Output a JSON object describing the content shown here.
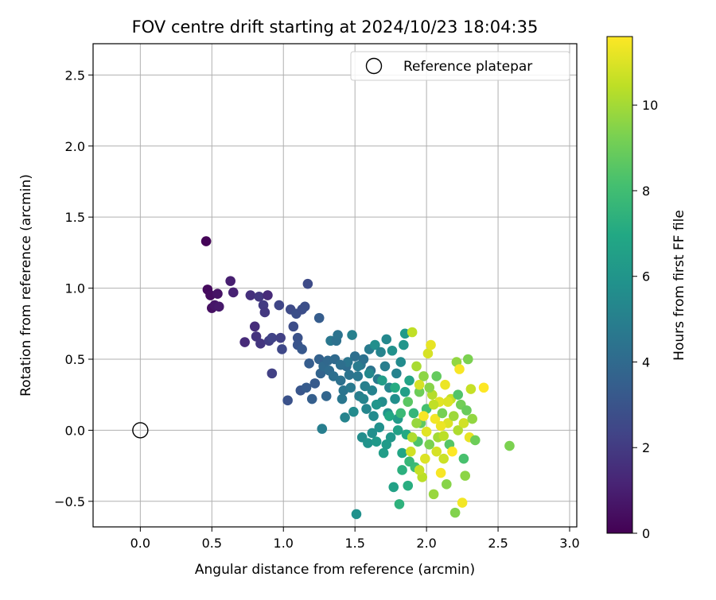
{
  "chart_data": {
    "type": "scatter",
    "title": "FOV centre drift starting at 2024/10/23 18:04:35",
    "xlabel": "Angular distance from reference (arcmin)",
    "ylabel": "Rotation from reference (arcmin)",
    "xlim": [
      -0.33,
      3.05
    ],
    "ylim": [
      -0.68,
      2.72
    ],
    "xticks": [
      0.0,
      0.5,
      1.0,
      1.5,
      2.0,
      2.5,
      3.0
    ],
    "xtick_labels": [
      "0.0",
      "0.5",
      "1.0",
      "1.5",
      "2.0",
      "2.5",
      "3.0"
    ],
    "yticks": [
      -0.5,
      0.0,
      0.5,
      1.0,
      1.5,
      2.0,
      2.5
    ],
    "ytick_labels": [
      "−0.5",
      "0.0",
      "0.5",
      "1.0",
      "1.5",
      "2.0",
      "2.5"
    ],
    "grid": true,
    "legend": {
      "position": "top-right",
      "entries": [
        {
          "label": "Reference platepar",
          "marker": "open-circle"
        }
      ]
    },
    "reference_point": {
      "x": 0.0,
      "y": 0.0
    },
    "colorbar": {
      "label": "Hours from first FF file",
      "colormap": "viridis",
      "range": [
        0,
        11.6
      ],
      "ticks": [
        0,
        2,
        4,
        6,
        8,
        10
      ],
      "tick_labels": [
        "0",
        "2",
        "4",
        "6",
        "8",
        "10"
      ]
    },
    "points": [
      {
        "x": 0.46,
        "y": 1.33,
        "t": 0.1
      },
      {
        "x": 0.47,
        "y": 0.99,
        "t": 0.3
      },
      {
        "x": 0.49,
        "y": 0.95,
        "t": 0.4
      },
      {
        "x": 0.5,
        "y": 0.86,
        "t": 0.5
      },
      {
        "x": 0.52,
        "y": 0.88,
        "t": 0.7
      },
      {
        "x": 0.54,
        "y": 0.96,
        "t": 0.6
      },
      {
        "x": 0.55,
        "y": 0.87,
        "t": 0.8
      },
      {
        "x": 0.63,
        "y": 1.05,
        "t": 1.0
      },
      {
        "x": 0.65,
        "y": 0.97,
        "t": 1.1
      },
      {
        "x": 0.73,
        "y": 0.62,
        "t": 1.4
      },
      {
        "x": 0.77,
        "y": 0.95,
        "t": 1.6
      },
      {
        "x": 0.8,
        "y": 0.73,
        "t": 1.5
      },
      {
        "x": 0.81,
        "y": 0.66,
        "t": 1.7
      },
      {
        "x": 0.83,
        "y": 0.94,
        "t": 1.9
      },
      {
        "x": 0.84,
        "y": 0.61,
        "t": 1.8
      },
      {
        "x": 0.86,
        "y": 0.88,
        "t": 2.0
      },
      {
        "x": 0.87,
        "y": 0.83,
        "t": 1.9
      },
      {
        "x": 0.89,
        "y": 0.95,
        "t": 1.4
      },
      {
        "x": 0.9,
        "y": 0.63,
        "t": 2.1
      },
      {
        "x": 0.92,
        "y": 0.4,
        "t": 2.2
      },
      {
        "x": 0.92,
        "y": 0.65,
        "t": 2.3
      },
      {
        "x": 0.97,
        "y": 0.88,
        "t": 2.4
      },
      {
        "x": 0.98,
        "y": 0.65,
        "t": 2.2
      },
      {
        "x": 0.99,
        "y": 0.57,
        "t": 2.5
      },
      {
        "x": 1.03,
        "y": 0.21,
        "t": 2.9
      },
      {
        "x": 1.05,
        "y": 0.85,
        "t": 2.6
      },
      {
        "x": 1.07,
        "y": 0.73,
        "t": 2.7
      },
      {
        "x": 1.09,
        "y": 0.82,
        "t": 2.8
      },
      {
        "x": 1.1,
        "y": 0.65,
        "t": 2.9
      },
      {
        "x": 1.1,
        "y": 0.6,
        "t": 3.0
      },
      {
        "x": 1.12,
        "y": 0.28,
        "t": 3.1
      },
      {
        "x": 1.13,
        "y": 0.85,
        "t": 2.7
      },
      {
        "x": 1.13,
        "y": 0.57,
        "t": 3.2
      },
      {
        "x": 1.15,
        "y": 0.87,
        "t": 2.8
      },
      {
        "x": 1.16,
        "y": 0.3,
        "t": 3.3
      },
      {
        "x": 1.17,
        "y": 1.03,
        "t": 2.6
      },
      {
        "x": 1.18,
        "y": 0.47,
        "t": 3.4
      },
      {
        "x": 1.2,
        "y": 0.22,
        "t": 3.5
      },
      {
        "x": 1.22,
        "y": 0.33,
        "t": 3.3
      },
      {
        "x": 1.25,
        "y": 0.79,
        "t": 3.4
      },
      {
        "x": 1.25,
        "y": 0.5,
        "t": 3.6
      },
      {
        "x": 1.26,
        "y": 0.4,
        "t": 3.7
      },
      {
        "x": 1.27,
        "y": 0.01,
        "t": 4.9
      },
      {
        "x": 1.28,
        "y": 0.45,
        "t": 4.0
      },
      {
        "x": 1.3,
        "y": 0.24,
        "t": 3.8
      },
      {
        "x": 1.31,
        "y": 0.49,
        "t": 3.9
      },
      {
        "x": 1.32,
        "y": 0.42,
        "t": 4.1
      },
      {
        "x": 1.33,
        "y": 0.63,
        "t": 4.6
      },
      {
        "x": 1.35,
        "y": 0.38,
        "t": 4.2
      },
      {
        "x": 1.36,
        "y": 0.5,
        "t": 4.0
      },
      {
        "x": 1.37,
        "y": 0.63,
        "t": 4.3
      },
      {
        "x": 1.38,
        "y": 0.67,
        "t": 4.4
      },
      {
        "x": 1.4,
        "y": 0.35,
        "t": 4.3
      },
      {
        "x": 1.41,
        "y": 0.22,
        "t": 4.6
      },
      {
        "x": 1.42,
        "y": 0.28,
        "t": 4.5
      },
      {
        "x": 1.43,
        "y": 0.09,
        "t": 5.2
      },
      {
        "x": 1.44,
        "y": 0.45,
        "t": 4.1
      },
      {
        "x": 1.46,
        "y": 0.39,
        "t": 4.4
      },
      {
        "x": 1.47,
        "y": 0.3,
        "t": 4.7
      },
      {
        "x": 1.48,
        "y": 0.67,
        "t": 5.0
      },
      {
        "x": 1.49,
        "y": 0.13,
        "t": 5.5
      },
      {
        "x": 1.5,
        "y": 0.52,
        "t": 4.2
      },
      {
        "x": 1.51,
        "y": -0.59,
        "t": 5.8
      },
      {
        "x": 1.52,
        "y": 0.38,
        "t": 4.6
      },
      {
        "x": 1.53,
        "y": 0.24,
        "t": 4.9
      },
      {
        "x": 1.54,
        "y": 0.46,
        "t": 4.5
      },
      {
        "x": 1.55,
        "y": -0.05,
        "t": 5.6
      },
      {
        "x": 1.56,
        "y": 0.5,
        "t": 4.3
      },
      {
        "x": 1.57,
        "y": 0.31,
        "t": 5.0
      },
      {
        "x": 1.58,
        "y": 0.15,
        "t": 5.3
      },
      {
        "x": 1.59,
        "y": -0.09,
        "t": 5.9
      },
      {
        "x": 1.6,
        "y": 0.57,
        "t": 4.8
      },
      {
        "x": 1.61,
        "y": 0.42,
        "t": 4.4
      },
      {
        "x": 1.62,
        "y": 0.28,
        "t": 5.1
      },
      {
        "x": 1.63,
        "y": 0.1,
        "t": 5.5
      },
      {
        "x": 1.64,
        "y": 0.6,
        "t": 5.7
      },
      {
        "x": 1.65,
        "y": -0.08,
        "t": 6.2
      },
      {
        "x": 1.66,
        "y": 0.36,
        "t": 4.7
      },
      {
        "x": 1.67,
        "y": 0.02,
        "t": 5.8
      },
      {
        "x": 1.68,
        "y": 0.55,
        "t": 5.2
      },
      {
        "x": 1.69,
        "y": 0.2,
        "t": 5.6
      },
      {
        "x": 1.7,
        "y": -0.16,
        "t": 6.4
      },
      {
        "x": 1.71,
        "y": 0.45,
        "t": 4.9
      },
      {
        "x": 1.72,
        "y": 0.64,
        "t": 5.4
      },
      {
        "x": 1.73,
        "y": 0.12,
        "t": 5.9
      },
      {
        "x": 1.74,
        "y": 0.3,
        "t": 5.3
      },
      {
        "x": 1.75,
        "y": -0.05,
        "t": 6.1
      },
      {
        "x": 1.76,
        "y": 0.56,
        "t": 5.8
      },
      {
        "x": 1.77,
        "y": -0.4,
        "t": 6.6
      },
      {
        "x": 1.78,
        "y": 0.22,
        "t": 5.7
      },
      {
        "x": 1.79,
        "y": 0.4,
        "t": 5.1
      },
      {
        "x": 1.8,
        "y": 0.08,
        "t": 6.3
      },
      {
        "x": 1.81,
        "y": -0.52,
        "t": 7.4
      },
      {
        "x": 1.82,
        "y": 0.48,
        "t": 5.5
      },
      {
        "x": 1.83,
        "y": -0.16,
        "t": 6.8
      },
      {
        "x": 1.84,
        "y": 0.6,
        "t": 6.0
      },
      {
        "x": 1.85,
        "y": 0.27,
        "t": 6.5
      },
      {
        "x": 1.85,
        "y": 0.68,
        "t": 6.2
      },
      {
        "x": 1.86,
        "y": -0.03,
        "t": 7.0
      },
      {
        "x": 1.87,
        "y": -0.39,
        "t": 7.2
      },
      {
        "x": 1.88,
        "y": 0.35,
        "t": 6.7
      },
      {
        "x": 1.89,
        "y": -0.15,
        "t": 10.8
      },
      {
        "x": 1.9,
        "y": 0.69,
        "t": 10.5
      },
      {
        "x": 1.91,
        "y": 0.12,
        "t": 7.6
      },
      {
        "x": 1.92,
        "y": -0.26,
        "t": 7.9
      },
      {
        "x": 1.93,
        "y": 0.45,
        "t": 10.1
      },
      {
        "x": 1.94,
        "y": -0.08,
        "t": 8.3
      },
      {
        "x": 1.95,
        "y": 0.27,
        "t": 9.0
      },
      {
        "x": 1.96,
        "y": 0.05,
        "t": 8.7
      },
      {
        "x": 1.97,
        "y": -0.33,
        "t": 10.4
      },
      {
        "x": 1.98,
        "y": 0.38,
        "t": 9.6
      },
      {
        "x": 1.99,
        "y": -0.2,
        "t": 11.0
      },
      {
        "x": 2.0,
        "y": 0.15,
        "t": 8.1
      },
      {
        "x": 2.01,
        "y": 0.54,
        "t": 10.9
      },
      {
        "x": 2.02,
        "y": -0.1,
        "t": 9.3
      },
      {
        "x": 2.03,
        "y": 0.6,
        "t": 11.2
      },
      {
        "x": 2.04,
        "y": 0.25,
        "t": 10.3
      },
      {
        "x": 2.05,
        "y": -0.45,
        "t": 9.8
      },
      {
        "x": 2.06,
        "y": 0.08,
        "t": 11.4
      },
      {
        "x": 2.07,
        "y": 0.38,
        "t": 8.8
      },
      {
        "x": 2.08,
        "y": -0.05,
        "t": 10.0
      },
      {
        "x": 2.09,
        "y": 0.2,
        "t": 11.1
      },
      {
        "x": 2.1,
        "y": -0.3,
        "t": 11.5
      },
      {
        "x": 2.11,
        "y": 0.12,
        "t": 9.2
      },
      {
        "x": 2.12,
        "y": -0.2,
        "t": 10.7
      },
      {
        "x": 2.13,
        "y": 0.32,
        "t": 11.3
      },
      {
        "x": 2.14,
        "y": -0.38,
        "t": 9.5
      },
      {
        "x": 2.15,
        "y": 0.05,
        "t": 11.0
      },
      {
        "x": 2.16,
        "y": -0.1,
        "t": 8.5
      },
      {
        "x": 2.17,
        "y": 0.22,
        "t": 10.6
      },
      {
        "x": 2.18,
        "y": -0.15,
        "t": 11.6
      },
      {
        "x": 2.19,
        "y": 0.1,
        "t": 9.9
      },
      {
        "x": 2.2,
        "y": -0.58,
        "t": 9.4
      },
      {
        "x": 2.21,
        "y": 0.48,
        "t": 9.7
      },
      {
        "x": 2.22,
        "y": 0.0,
        "t": 10.2
      },
      {
        "x": 2.23,
        "y": 0.43,
        "t": 11.5
      },
      {
        "x": 2.24,
        "y": 0.18,
        "t": 9.1
      },
      {
        "x": 2.25,
        "y": -0.51,
        "t": 11.4
      },
      {
        "x": 2.26,
        "y": 0.05,
        "t": 10.8
      },
      {
        "x": 2.27,
        "y": -0.32,
        "t": 9.6
      },
      {
        "x": 2.28,
        "y": 0.14,
        "t": 8.9
      },
      {
        "x": 2.29,
        "y": 0.5,
        "t": 9.3
      },
      {
        "x": 2.3,
        "y": -0.05,
        "t": 11.2
      },
      {
        "x": 2.31,
        "y": 0.29,
        "t": 10.6
      },
      {
        "x": 2.32,
        "y": 0.08,
        "t": 9.7
      },
      {
        "x": 2.34,
        "y": -0.07,
        "t": 9.0
      },
      {
        "x": 2.4,
        "y": 0.3,
        "t": 11.6
      },
      {
        "x": 2.58,
        "y": -0.11,
        "t": 9.3
      },
      {
        "x": 1.95,
        "y": 0.32,
        "t": 10.9
      },
      {
        "x": 2.0,
        "y": -0.01,
        "t": 11.1
      },
      {
        "x": 2.05,
        "y": 0.18,
        "t": 10.5
      },
      {
        "x": 2.1,
        "y": 0.03,
        "t": 11.3
      },
      {
        "x": 1.9,
        "y": -0.05,
        "t": 10.2
      },
      {
        "x": 1.98,
        "y": 0.1,
        "t": 11.5
      },
      {
        "x": 2.07,
        "y": -0.15,
        "t": 10.9
      },
      {
        "x": 2.15,
        "y": 0.2,
        "t": 11.0
      },
      {
        "x": 1.93,
        "y": 0.05,
        "t": 9.8
      },
      {
        "x": 2.02,
        "y": 0.3,
        "t": 9.5
      },
      {
        "x": 2.12,
        "y": -0.04,
        "t": 10.4
      },
      {
        "x": 1.87,
        "y": 0.2,
        "t": 8.6
      },
      {
        "x": 1.82,
        "y": 0.12,
        "t": 7.8
      },
      {
        "x": 1.78,
        "y": 0.3,
        "t": 7.1
      },
      {
        "x": 1.74,
        "y": 0.1,
        "t": 6.9
      },
      {
        "x": 1.69,
        "y": 0.35,
        "t": 6.4
      },
      {
        "x": 1.65,
        "y": 0.18,
        "t": 6.0
      },
      {
        "x": 1.6,
        "y": 0.4,
        "t": 5.4
      },
      {
        "x": 1.56,
        "y": 0.22,
        "t": 5.2
      },
      {
        "x": 1.52,
        "y": 0.45,
        "t": 4.8
      },
      {
        "x": 1.45,
        "y": 0.48,
        "t": 4.5
      },
      {
        "x": 1.4,
        "y": 0.46,
        "t": 4.2
      },
      {
        "x": 1.83,
        "y": -0.28,
        "t": 7.3
      },
      {
        "x": 1.88,
        "y": -0.22,
        "t": 7.7
      },
      {
        "x": 1.95,
        "y": -0.28,
        "t": 10.6
      },
      {
        "x": 2.22,
        "y": 0.25,
        "t": 8.4
      },
      {
        "x": 2.26,
        "y": -0.2,
        "t": 8.2
      },
      {
        "x": 1.8,
        "y": 0.0,
        "t": 6.6
      },
      {
        "x": 1.72,
        "y": -0.1,
        "t": 6.3
      },
      {
        "x": 1.62,
        "y": -0.02,
        "t": 5.7
      }
    ]
  }
}
